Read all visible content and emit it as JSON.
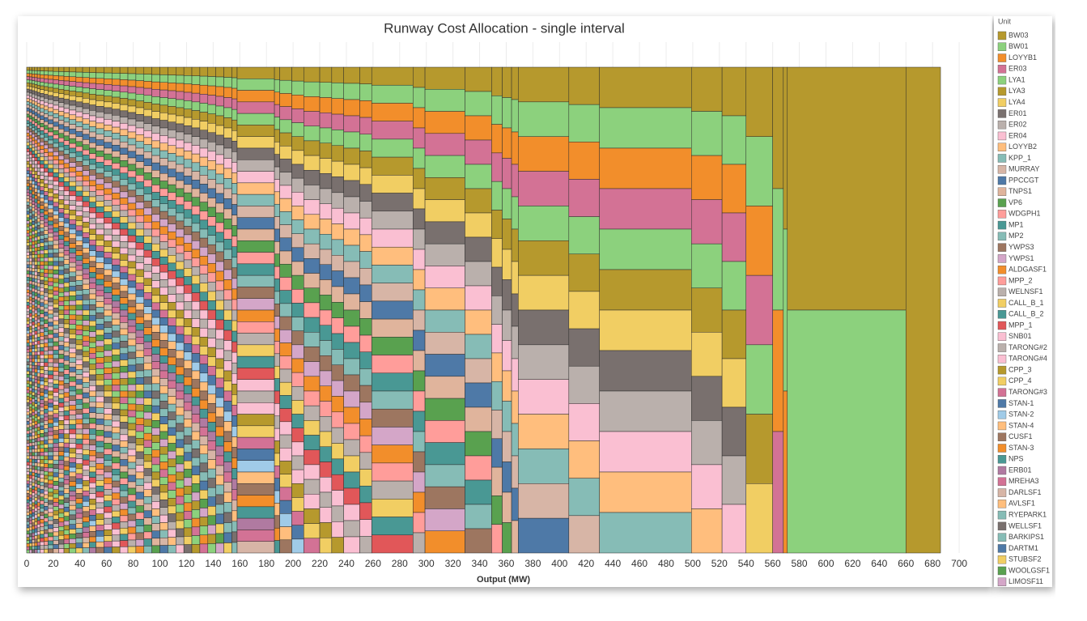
{
  "chart_data": {
    "type": "runway",
    "title": "Runway Cost Allocation - single interval",
    "x_label": "Output (MW)",
    "legend_title": "Unit",
    "xlim": [
      -3,
      720
    ],
    "xticks": [
      0,
      20,
      40,
      60,
      80,
      100,
      120,
      140,
      160,
      180,
      200,
      220,
      240,
      260,
      280,
      300,
      320,
      340,
      360,
      380,
      400,
      420,
      440,
      460,
      480,
      500,
      520,
      540,
      560,
      580,
      600,
      620,
      640,
      660,
      680,
      700
    ],
    "grid": true,
    "series": [
      {
        "name": "BW03",
        "color": "#b6992d"
      },
      {
        "name": "BW01",
        "color": "#8cd17d"
      },
      {
        "name": "LOYYB1",
        "color": "#f28e2b"
      },
      {
        "name": "ER03",
        "color": "#d37295"
      },
      {
        "name": "LYA1",
        "color": "#8cd17d"
      },
      {
        "name": "LYA3",
        "color": "#b6992d"
      },
      {
        "name": "LYA4",
        "color": "#f1ce63"
      },
      {
        "name": "ER01",
        "color": "#79706e"
      },
      {
        "name": "ER02",
        "color": "#bab0ac"
      },
      {
        "name": "ER04",
        "color": "#fabfd2"
      },
      {
        "name": "LOYYB2",
        "color": "#ffbe7d"
      },
      {
        "name": "KPP_1",
        "color": "#86bcb6"
      },
      {
        "name": "MURRAY",
        "color": "#d7b5a6"
      },
      {
        "name": "PPCCGT",
        "color": "#4e79a7"
      },
      {
        "name": "TNPS1",
        "color": "#e0b49c"
      },
      {
        "name": "VP6",
        "color": "#59a14f"
      },
      {
        "name": "WDGPH1",
        "color": "#ff9d9a"
      },
      {
        "name": "MP1",
        "color": "#499894"
      },
      {
        "name": "MP2",
        "color": "#86bcb6"
      },
      {
        "name": "YWPS3",
        "color": "#9d7660"
      },
      {
        "name": "YWPS1",
        "color": "#d4a6c8"
      },
      {
        "name": "ALDGASF1",
        "color": "#f28e2b"
      },
      {
        "name": "MPP_2",
        "color": "#ff9d9a"
      },
      {
        "name": "WELNSF1",
        "color": "#bab0ac"
      },
      {
        "name": "CALL_B_1",
        "color": "#f1ce63"
      },
      {
        "name": "CALL_B_2",
        "color": "#499894"
      },
      {
        "name": "MPP_1",
        "color": "#e15759"
      },
      {
        "name": "SNB01",
        "color": "#fabfd2"
      },
      {
        "name": "TARONG#2",
        "color": "#bab0ac"
      },
      {
        "name": "TARONG#4",
        "color": "#fabfd2"
      },
      {
        "name": "CPP_3",
        "color": "#b6992d"
      },
      {
        "name": "CPP_4",
        "color": "#f1ce63"
      },
      {
        "name": "TARONG#3",
        "color": "#d37295"
      },
      {
        "name": "STAN-1",
        "color": "#4e79a7"
      },
      {
        "name": "STAN-2",
        "color": "#a0cbe8"
      },
      {
        "name": "STAN-4",
        "color": "#ffbe7d"
      },
      {
        "name": "CUSF1",
        "color": "#9d7660"
      },
      {
        "name": "STAN-3",
        "color": "#f28e2b"
      },
      {
        "name": "NPS",
        "color": "#499894"
      },
      {
        "name": "ERB01",
        "color": "#b07aa1"
      },
      {
        "name": "MREHA3",
        "color": "#d37295"
      },
      {
        "name": "DARLSF1",
        "color": "#d7b5a6"
      },
      {
        "name": "AVLSF1",
        "color": "#ffbe7d"
      },
      {
        "name": "RYEPARK1",
        "color": "#86bcb6"
      },
      {
        "name": "WELLSF1",
        "color": "#79706e"
      },
      {
        "name": "BARKIPS1",
        "color": "#86bcb6"
      },
      {
        "name": "DARTM1",
        "color": "#4e79a7"
      },
      {
        "name": "STUBSF2",
        "color": "#f1ce63"
      },
      {
        "name": "WOOLGSF1",
        "color": "#59a14f"
      },
      {
        "name": "LIMOSF11",
        "color": "#d4a6c8"
      }
    ],
    "columns": [
      {
        "x0": 0,
        "x1": 2,
        "count": 155
      },
      {
        "x0": 2,
        "x1": 4,
        "count": 150
      },
      {
        "x0": 4,
        "x1": 6,
        "count": 145
      },
      {
        "x0": 6,
        "x1": 8,
        "count": 140
      },
      {
        "x0": 8,
        "x1": 10,
        "count": 135
      },
      {
        "x0": 10,
        "x1": 13,
        "count": 130
      },
      {
        "x0": 13,
        "x1": 16,
        "count": 125
      },
      {
        "x0": 16,
        "x1": 20,
        "count": 120
      },
      {
        "x0": 20,
        "x1": 24,
        "count": 115
      },
      {
        "x0": 24,
        "x1": 28,
        "count": 110
      },
      {
        "x0": 28,
        "x1": 32,
        "count": 106
      },
      {
        "x0": 32,
        "x1": 37,
        "count": 102
      },
      {
        "x0": 37,
        "x1": 42,
        "count": 98
      },
      {
        "x0": 42,
        "x1": 47,
        "count": 94
      },
      {
        "x0": 47,
        "x1": 52,
        "count": 90
      },
      {
        "x0": 52,
        "x1": 58,
        "count": 87
      },
      {
        "x0": 58,
        "x1": 64,
        "count": 84
      },
      {
        "x0": 64,
        "x1": 70,
        "count": 81
      },
      {
        "x0": 70,
        "x1": 76,
        "count": 78
      },
      {
        "x0": 76,
        "x1": 82,
        "count": 75
      },
      {
        "x0": 82,
        "x1": 88,
        "count": 72
      },
      {
        "x0": 88,
        "x1": 94,
        "count": 69
      },
      {
        "x0": 94,
        "x1": 100,
        "count": 66
      },
      {
        "x0": 100,
        "x1": 106,
        "count": 64
      },
      {
        "x0": 106,
        "x1": 112,
        "count": 62
      },
      {
        "x0": 112,
        "x1": 118,
        "count": 60
      },
      {
        "x0": 118,
        "x1": 124,
        "count": 58
      },
      {
        "x0": 124,
        "x1": 130,
        "count": 56
      },
      {
        "x0": 130,
        "x1": 136,
        "count": 54
      },
      {
        "x0": 136,
        "x1": 142,
        "count": 52
      },
      {
        "x0": 142,
        "x1": 148,
        "count": 50
      },
      {
        "x0": 148,
        "x1": 154,
        "count": 48
      },
      {
        "x0": 154,
        "x1": 158,
        "count": 46
      },
      {
        "x0": 158,
        "x1": 186,
        "count": 42
      },
      {
        "x0": 186,
        "x1": 190,
        "count": 39
      },
      {
        "x0": 190,
        "x1": 199,
        "count": 37
      },
      {
        "x0": 199,
        "x1": 208,
        "count": 35
      },
      {
        "x0": 208,
        "x1": 220,
        "count": 33
      },
      {
        "x0": 220,
        "x1": 229,
        "count": 32
      },
      {
        "x0": 229,
        "x1": 238,
        "count": 31
      },
      {
        "x0": 238,
        "x1": 250,
        "count": 30
      },
      {
        "x0": 250,
        "x1": 259,
        "count": 29
      },
      {
        "x0": 259,
        "x1": 290,
        "count": 27
      },
      {
        "x0": 290,
        "x1": 299,
        "count": 24
      },
      {
        "x0": 299,
        "x1": 329,
        "count": 22
      },
      {
        "x0": 329,
        "x1": 349,
        "count": 20
      },
      {
        "x0": 349,
        "x1": 357,
        "count": 17
      },
      {
        "x0": 357,
        "x1": 364,
        "count": 16
      },
      {
        "x0": 364,
        "x1": 369,
        "count": 15
      },
      {
        "x0": 369,
        "x1": 407,
        "count": 14
      },
      {
        "x0": 407,
        "x1": 430,
        "count": 13
      },
      {
        "x0": 430,
        "x1": 499,
        "count": 12
      },
      {
        "x0": 499,
        "x1": 522,
        "count": 11
      },
      {
        "x0": 522,
        "x1": 540,
        "count": 10
      },
      {
        "x0": 540,
        "x1": 560,
        "count": 7
      },
      {
        "x0": 560,
        "x1": 568,
        "count": 4
      },
      {
        "x0": 568,
        "x1": 571,
        "count": 3
      },
      {
        "x0": 571,
        "x1": 660,
        "count": 2
      },
      {
        "x0": 660,
        "x1": 686,
        "count": 1
      }
    ]
  }
}
